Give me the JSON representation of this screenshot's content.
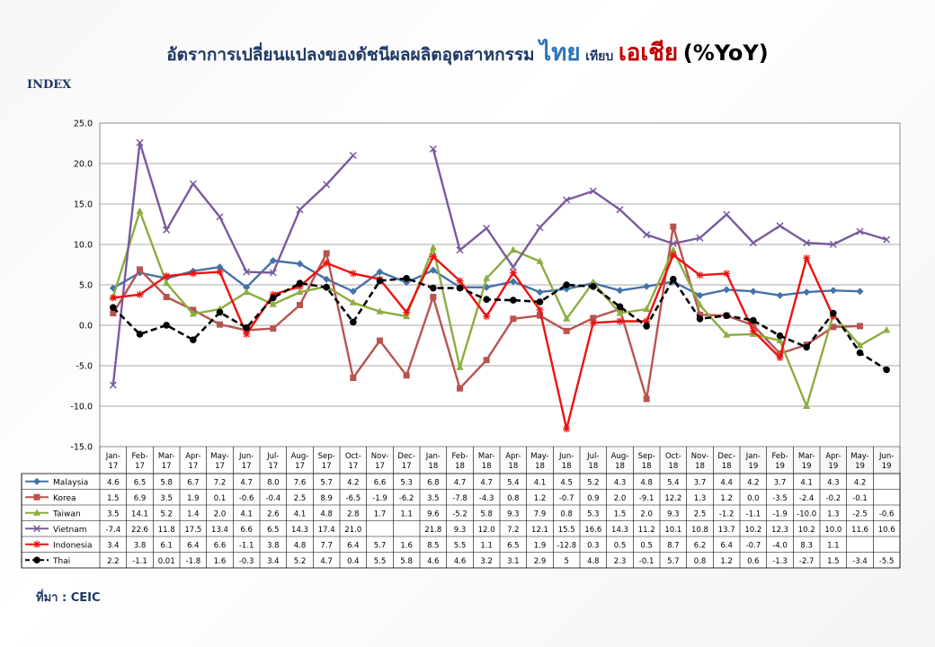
{
  "title": {
    "part1": "อัตราการเปลี่ยนแปลงของดัชนีผลผลิตอุตสาหกรรม",
    "part2": "ไทย",
    "part3": "เทียบ",
    "part4": "เอเชีย",
    "part5": "(%YoY)"
  },
  "y_axis_title": "INDEX",
  "source": "ที่มา : CEIC",
  "chart_data": {
    "type": "line",
    "ylim": [
      -15,
      25
    ],
    "yticks": [
      "25.0",
      "20.0",
      "15.0",
      "10.0",
      "5.0",
      "0.0",
      "-5.0",
      "-10.0",
      "-15.0"
    ],
    "categories": [
      "Jan-17",
      "Feb-17",
      "Mar-17",
      "Apr-17",
      "May-17",
      "Jun-17",
      "Jul-17",
      "Aug-17",
      "Sep-17",
      "Oct-17",
      "Nov-17",
      "Dec-17",
      "Jan-18",
      "Feb-18",
      "Mar-18",
      "Apr-18",
      "May-18",
      "Jun-18",
      "Jul-18",
      "Aug-18",
      "Sep-18",
      "Oct-18",
      "Nov-18",
      "Dec-18",
      "Jan-19",
      "Feb-19",
      "Mar-19",
      "Apr-19",
      "May-19",
      "Jun-19"
    ],
    "series": [
      {
        "name": "Malaysia",
        "color": "#4472a8",
        "marker": "diamond",
        "values": [
          4.6,
          6.5,
          5.8,
          6.7,
          7.2,
          4.7,
          8.0,
          7.6,
          5.7,
          4.2,
          6.6,
          5.3,
          6.8,
          4.7,
          4.7,
          5.4,
          4.1,
          4.5,
          5.2,
          4.3,
          4.8,
          5.4,
          3.7,
          4.4,
          4.2,
          3.7,
          4.1,
          4.3,
          4.2,
          null
        ],
        "labels": [
          "4.6",
          "6.5",
          "5.8",
          "6.7",
          "7.2",
          "4.7",
          "8.0",
          "7.6",
          "5.7",
          "4.2",
          "6.6",
          "5.3",
          "6.8",
          "4.7",
          "4.7",
          "5.4",
          "4.1",
          "4.5",
          "5.2",
          "4.3",
          "4.8",
          "5.4",
          "3.7",
          "4.4",
          "4.2",
          "3.7",
          "4.1",
          "4.3",
          "4.2",
          ""
        ]
      },
      {
        "name": "Korea",
        "color": "#b85450",
        "marker": "square",
        "values": [
          1.5,
          6.9,
          3.5,
          1.9,
          0.1,
          -0.6,
          -0.4,
          2.5,
          8.9,
          -6.5,
          -1.9,
          -6.2,
          3.5,
          -7.8,
          -4.3,
          0.8,
          1.2,
          -0.7,
          0.9,
          2.0,
          -9.1,
          12.2,
          1.3,
          1.2,
          0.0,
          -3.5,
          -2.4,
          -0.2,
          -0.1,
          null
        ],
        "labels": [
          "1.5",
          "6.9",
          "3.5",
          "1.9",
          "0.1",
          "-0.6",
          "-0.4",
          "2.5",
          "8.9",
          "-6.5",
          "-1.9",
          "-6.2",
          "3.5",
          "-7.8",
          "-4.3",
          "0.8",
          "1.2",
          "-0.7",
          "0.9",
          "2.0",
          "-9.1",
          "12.2",
          "1.3",
          "1.2",
          "0.0",
          "-3.5",
          "-2.4",
          "-0.2",
          "-0.1",
          ""
        ]
      },
      {
        "name": "Taiwan",
        "color": "#8cad3f",
        "marker": "triangle",
        "values": [
          3.5,
          14.1,
          5.2,
          1.4,
          2.0,
          4.1,
          2.6,
          4.1,
          4.8,
          2.8,
          1.7,
          1.1,
          9.6,
          -5.2,
          5.8,
          9.3,
          7.9,
          0.8,
          5.3,
          1.5,
          2.0,
          9.3,
          2.5,
          -1.2,
          -1.1,
          -1.9,
          -10.0,
          1.3,
          -2.5,
          -0.6
        ],
        "labels": [
          "3.5",
          "14.1",
          "5.2",
          "1.4",
          "2.0",
          "4.1",
          "2.6",
          "4.1",
          "4.8",
          "2.8",
          "1.7",
          "1.1",
          "9.6",
          "-5.2",
          "5.8",
          "9.3",
          "7.9",
          "0.8",
          "5.3",
          "1.5",
          "2.0",
          "9.3",
          "2.5",
          "-1.2",
          "-1.1",
          "-1.9",
          "-10.0",
          "1.3",
          "-2.5",
          "-0.6"
        ]
      },
      {
        "name": "Vietnam",
        "color": "#7a5a9e",
        "marker": "x",
        "values": [
          -7.4,
          22.6,
          11.8,
          17.5,
          13.4,
          6.6,
          6.5,
          14.3,
          17.4,
          21.0,
          null,
          null,
          21.8,
          9.3,
          12.0,
          7.2,
          12.1,
          15.5,
          16.6,
          14.3,
          11.2,
          10.1,
          10.8,
          13.7,
          10.2,
          12.3,
          10.2,
          10.0,
          11.6,
          10.6
        ],
        "labels": [
          "-7.4",
          "22.6",
          "11.8",
          "17.5",
          "13.4",
          "6.6",
          "6.5",
          "14.3",
          "17.4",
          "21.0",
          "",
          "",
          "21.8",
          "9.3",
          "12.0",
          "7.2",
          "12.1",
          "15.5",
          "16.6",
          "14.3",
          "11.2",
          "10.1",
          "10.8",
          "13.7",
          "10.2",
          "12.3",
          "10.2",
          "10.0",
          "11.6",
          "10.6"
        ]
      },
      {
        "name": "Indonesia",
        "color": "#ee1111",
        "marker": "star",
        "values": [
          3.4,
          3.8,
          6.1,
          6.4,
          6.6,
          -1.1,
          3.8,
          4.8,
          7.7,
          6.4,
          5.7,
          1.6,
          8.5,
          5.5,
          1.1,
          6.5,
          1.9,
          -12.8,
          0.3,
          0.5,
          0.5,
          8.7,
          6.2,
          6.4,
          -0.7,
          -4.0,
          8.3,
          1.1,
          null,
          null
        ],
        "labels": [
          "3.4",
          "3.8",
          "6.1",
          "6.4",
          "6.6",
          "-1.1",
          "3.8",
          "4.8",
          "7.7",
          "6.4",
          "5.7",
          "1.6",
          "8.5",
          "5.5",
          "1.1",
          "6.5",
          "1.9",
          "-12.8",
          "0.3",
          "0.5",
          "0.5",
          "8.7",
          "6.2",
          "6.4",
          "-0.7",
          "-4.0",
          "8.3",
          "1.1",
          "",
          ""
        ]
      },
      {
        "name": "Thai",
        "color": "#000000",
        "marker": "circle",
        "dashed": true,
        "values": [
          2.2,
          -1.1,
          0.01,
          -1.8,
          1.6,
          -0.3,
          3.4,
          5.2,
          4.7,
          0.4,
          5.5,
          5.8,
          4.6,
          4.6,
          3.2,
          3.1,
          2.9,
          5,
          4.8,
          2.3,
          -0.1,
          5.7,
          0.8,
          1.2,
          0.6,
          -1.3,
          -2.7,
          1.5,
          -3.4,
          -5.5
        ],
        "labels": [
          "2.2",
          "-1.1",
          "0.01",
          "-1.8",
          "1.6",
          "-0.3",
          "3.4",
          "5.2",
          "4.7",
          "0.4",
          "5.5",
          "5.8",
          "4.6",
          "4.6",
          "3.2",
          "3.1",
          "2.9",
          "5",
          "4.8",
          "2.3",
          "-0.1",
          "5.7",
          "0.8",
          "1.2",
          "0.6",
          "-1.3",
          "-2.7",
          "1.5",
          "-3.4",
          "-5.5"
        ]
      }
    ]
  }
}
